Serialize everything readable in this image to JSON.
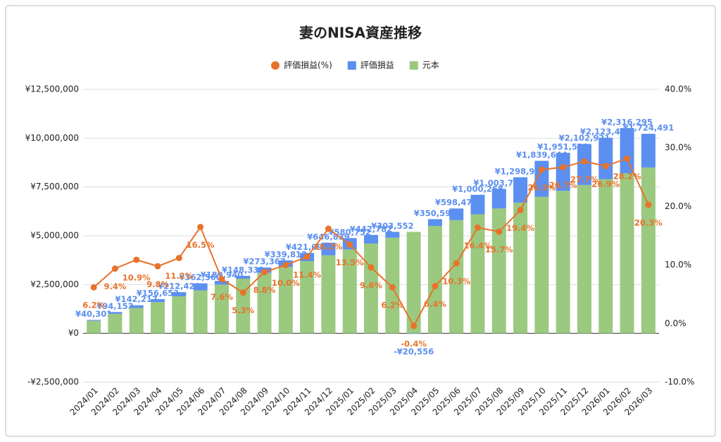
{
  "chart_data": {
    "type": "bar",
    "title": "妻のNISA資産推移",
    "categories": [
      "2024/01",
      "2024/02",
      "2024/03",
      "2024/04",
      "2024/05",
      "2024/06",
      "2024/07",
      "2024/08",
      "2024/09",
      "2024/10",
      "2024/11",
      "2024/12",
      "2025/01",
      "2025/02",
      "2025/03",
      "2025/04",
      "2025/05",
      "2025/06",
      "2025/07",
      "2025/08",
      "2025/09",
      "2025/10",
      "2025/11",
      "2025/12",
      "2026/01",
      "2026/02",
      "2026/03"
    ],
    "series": [
      {
        "name": "評価損益(%)",
        "type": "line",
        "axis": "y2",
        "color": "#e8732c",
        "values": [
          6.2,
          9.4,
          10.9,
          9.8,
          11.2,
          16.5,
          7.6,
          5.3,
          8.8,
          10.0,
          11.4,
          16.2,
          13.5,
          9.6,
          6.2,
          -0.4,
          6.4,
          10.3,
          16.4,
          15.7,
          19.4,
          26.3,
          26.7,
          27.7,
          26.9,
          28.2,
          20.3
        ],
        "value_labels": [
          "6.2%",
          "9.4%",
          "10.9%",
          "9.8%",
          "11.2%",
          "16.5%",
          "7.6%",
          "5.3%",
          "8.8%",
          "10.0%",
          "11.4%",
          "16.2%",
          "13.5%",
          "9.6%",
          "6.2%",
          "-0.4%",
          "6.4%",
          "10.3%",
          "16.4%",
          "15.7%",
          "19.4%",
          "26.3%",
          "26.7%",
          "27.7%",
          "26.9%",
          "28.2%",
          "20.3%"
        ]
      },
      {
        "name": "評価損益",
        "type": "bar",
        "color": "#5b8ff0",
        "values": [
          40301,
          94152,
          142217,
          156653,
          212420,
          362560,
          189940,
          148332,
          273367,
          339812,
          421098,
          646839,
          580752,
          442782,
          303552,
          -20556,
          350590,
          598478,
          1000268,
          1003769,
          1298975,
          1839644,
          1951523,
          2102921,
          2123485,
          2316295,
          1724491
        ],
        "value_labels": [
          "¥40,301",
          "¥94,152",
          "¥142,217",
          "¥156,653",
          "¥212,420",
          "¥362,560",
          "¥189,940",
          "¥148,332",
          "¥273,367",
          "¥339,812",
          "¥421,098",
          "¥646,839",
          "¥580,752",
          "¥442,782",
          "¥303,552",
          "-¥20,556",
          "¥350,590",
          "¥598,478",
          "¥1,000,268",
          "¥1,003,769",
          "¥1,298,975",
          "¥1,839,644",
          "¥1,951,523",
          "¥2,102,921",
          "¥2,123,485",
          "¥2,316,295",
          "¥1,724,491"
        ]
      },
      {
        "name": "元本",
        "type": "bar",
        "color": "#9bc97f",
        "values": [
          650000,
          1000000,
          1300000,
          1600000,
          1900000,
          2200000,
          2500000,
          2800000,
          3100000,
          3400000,
          3700000,
          4000000,
          4300000,
          4600000,
          4900000,
          5200000,
          5500000,
          5800000,
          6100000,
          6400000,
          6700000,
          7000000,
          7300000,
          7600000,
          7900000,
          8200000,
          8500000
        ]
      }
    ],
    "ylim": [
      -2500000,
      12500000
    ],
    "yticks": [
      {
        "value": -2500000,
        "label": "-¥2,500,000"
      },
      {
        "value": 0,
        "label": "¥0"
      },
      {
        "value": 2500000,
        "label": "¥2,500,000"
      },
      {
        "value": 5000000,
        "label": "¥5,000,000"
      },
      {
        "value": 7500000,
        "label": "¥7,500,000"
      },
      {
        "value": 10000000,
        "label": "¥10,000,000"
      },
      {
        "value": 12500000,
        "label": "¥12,500,000"
      }
    ],
    "y2lim": [
      -10,
      40
    ],
    "y2ticks": [
      {
        "value": -10,
        "label": "-10.0%"
      },
      {
        "value": 0,
        "label": "0.0%"
      },
      {
        "value": 10,
        "label": "10.0%"
      },
      {
        "value": 20,
        "label": "20.0%"
      },
      {
        "value": 30,
        "label": "30.0%"
      },
      {
        "value": 40,
        "label": "40.0%"
      }
    ],
    "grid": true,
    "legend": "top"
  }
}
